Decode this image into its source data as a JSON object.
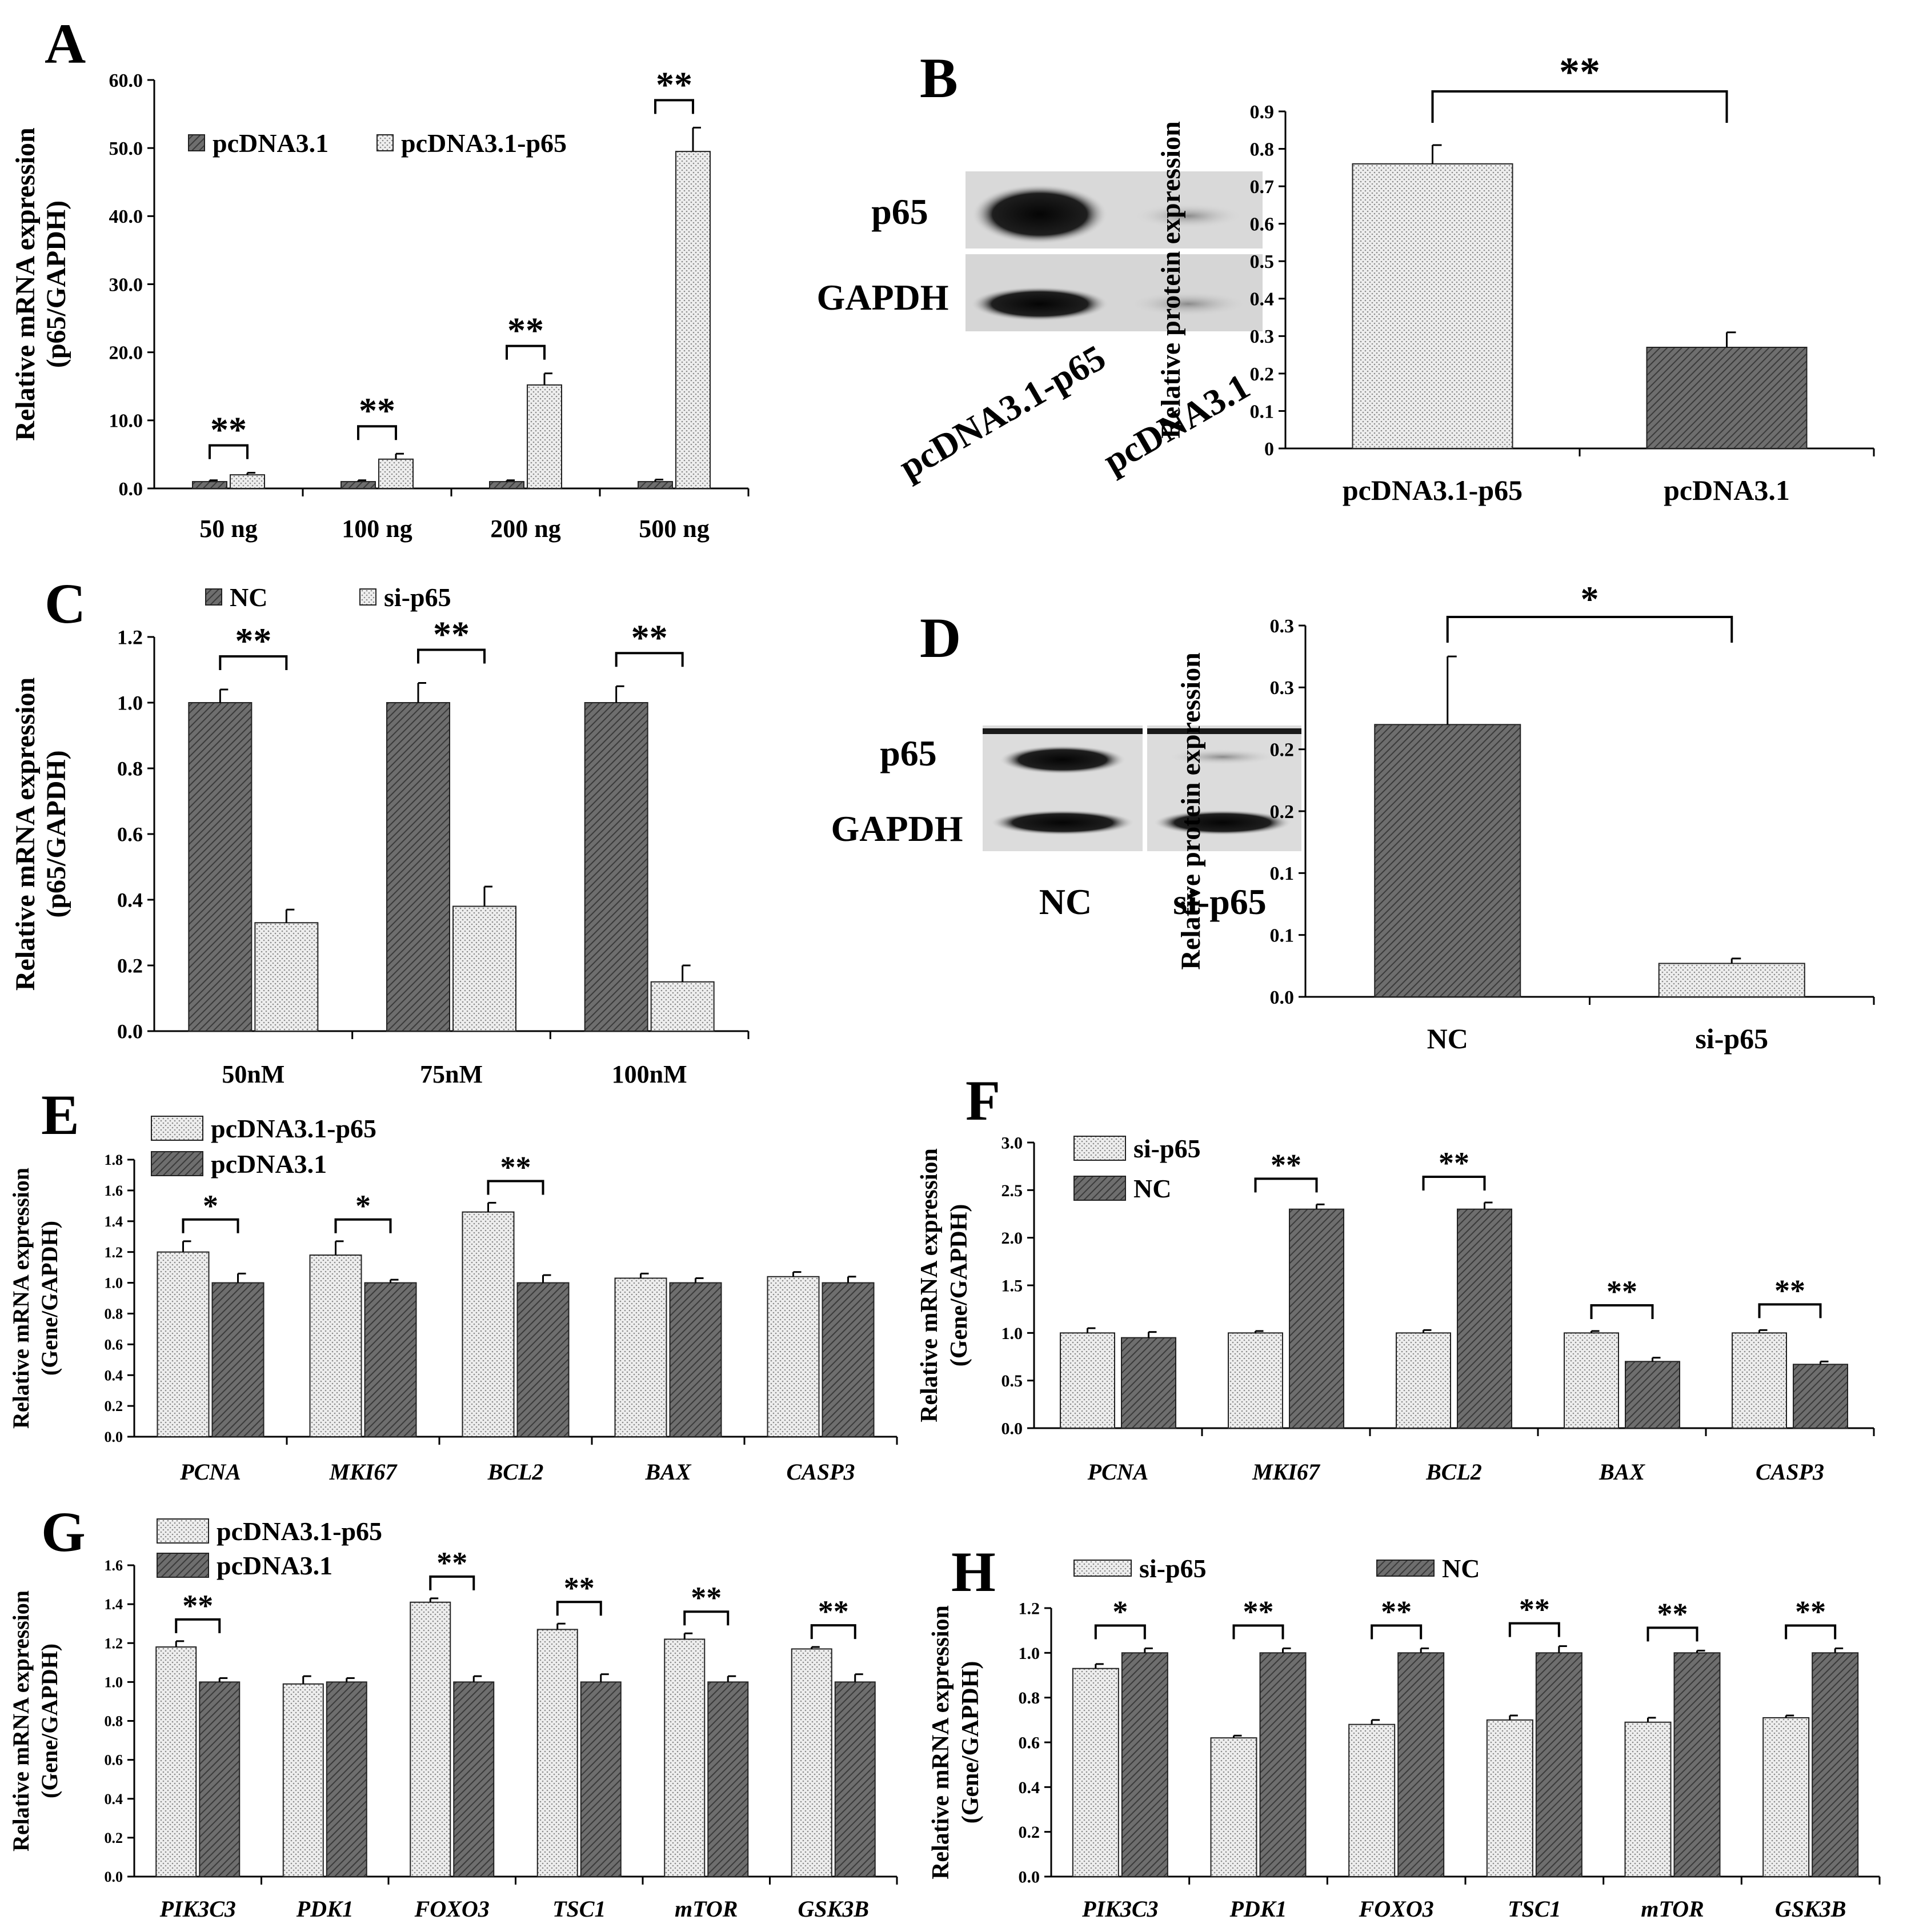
{
  "panels": {
    "A": {
      "letter": "A",
      "chart_data": {
        "type": "bar",
        "title": "",
        "xlabel": "",
        "ylabel": [
          "Relative mRNA expression",
          "(p65/GAPDH)"
        ],
        "categories": [
          "50 ng",
          "100 ng",
          "200 ng",
          "500 ng"
        ],
        "series": [
          {
            "name": "pcDNA3.1",
            "pattern": "dark",
            "values": [
              1.0,
              1.0,
              1.0,
              1.0
            ],
            "errors": [
              0.2,
              0.2,
              0.2,
              0.3
            ]
          },
          {
            "name": "pcDNA3.1-p65",
            "pattern": "light",
            "values": [
              2.0,
              4.3,
              15.2,
              49.5
            ],
            "errors": [
              0.3,
              0.8,
              1.7,
              3.5
            ]
          }
        ],
        "ylim": [
          0,
          60
        ],
        "yticks": [
          0,
          10,
          20,
          30,
          40,
          50,
          60
        ],
        "ytick_labels": [
          "0.0",
          "10.0",
          "20.0",
          "30.0",
          "40.0",
          "50.0",
          "60.0"
        ],
        "significance": [
          {
            "category": 0,
            "label": "**"
          },
          {
            "category": 1,
            "label": "**"
          },
          {
            "category": 2,
            "label": "**"
          },
          {
            "category": 3,
            "label": "**"
          }
        ],
        "legend": "top-left",
        "legend_layout": "row",
        "grid": false
      }
    },
    "B": {
      "letter": "B",
      "blot": {
        "rows": [
          "p65",
          "GAPDH"
        ],
        "lanes": [
          "pcDNA3.1-p65",
          "pcDNA3.1"
        ]
      },
      "chart_data": {
        "type": "bar",
        "title": "",
        "xlabel": "",
        "ylabel": [
          "Relative protein expression"
        ],
        "categories": [
          "pcDNA3.1-p65",
          "pcDNA3.1"
        ],
        "series": [
          {
            "name": "",
            "patterns": [
              "light",
              "dark"
            ],
            "values": [
              0.76,
              0.27
            ],
            "errors": [
              0.05,
              0.04
            ]
          }
        ],
        "ylim": [
          0,
          0.9
        ],
        "yticks": [
          0,
          0.1,
          0.2,
          0.3,
          0.4,
          0.5,
          0.6,
          0.7,
          0.8,
          0.9
        ],
        "ytick_labels": [
          "0",
          "0.1",
          "0.2",
          "0.3",
          "0.4",
          "0.5",
          "0.6",
          "0.7",
          "0.8",
          "0.9"
        ],
        "significance": [
          {
            "from": 0,
            "to": 1,
            "label": "**"
          }
        ],
        "grid": false
      }
    },
    "C": {
      "letter": "C",
      "chart_data": {
        "type": "bar",
        "title": "",
        "xlabel": "",
        "ylabel": [
          "Relative mRNA expression",
          "(p65/GAPDH)"
        ],
        "categories": [
          "50nM",
          "75nM",
          "100nM"
        ],
        "series": [
          {
            "name": "NC",
            "pattern": "dark",
            "values": [
              1.0,
              1.0,
              1.0
            ],
            "errors": [
              0.04,
              0.06,
              0.05
            ]
          },
          {
            "name": "si-p65",
            "pattern": "light",
            "values": [
              0.33,
              0.38,
              0.15
            ],
            "errors": [
              0.04,
              0.06,
              0.05
            ]
          }
        ],
        "ylim": [
          0,
          1.2
        ],
        "yticks": [
          0,
          0.2,
          0.4,
          0.6,
          0.8,
          1.0,
          1.2
        ],
        "ytick_labels": [
          "0.0",
          "0.2",
          "0.4",
          "0.6",
          "0.8",
          "1.0",
          "1.2"
        ],
        "significance": [
          {
            "category": 0,
            "label": "**"
          },
          {
            "category": 1,
            "label": "**"
          },
          {
            "category": 2,
            "label": "**"
          }
        ],
        "legend": "top",
        "legend_layout": "row",
        "grid": false
      }
    },
    "D": {
      "letter": "D",
      "blot": {
        "rows": [
          "p65",
          "GAPDH"
        ],
        "lanes": [
          "NC",
          "si-p65"
        ]
      },
      "chart_data": {
        "type": "bar",
        "title": "",
        "xlabel": "",
        "ylabel": [
          "Relative protein expression"
        ],
        "categories": [
          "NC",
          "si-p65"
        ],
        "series": [
          {
            "name": "",
            "patterns": [
              "dark",
              "light"
            ],
            "values": [
              0.22,
              0.027
            ],
            "errors": [
              0.055,
              0.004
            ]
          }
        ],
        "ylim": [
          0,
          0.3
        ],
        "yticks": [
          0,
          0.05,
          0.1,
          0.15,
          0.2,
          0.25,
          0.3
        ],
        "ytick_labels": [
          "0.0",
          "0.1",
          "0.1",
          "0.2",
          "0.2",
          "0.3",
          "0.3"
        ],
        "significance": [
          {
            "from": 0,
            "to": 1,
            "label": "*"
          }
        ],
        "grid": false
      }
    },
    "E": {
      "letter": "E",
      "chart_data": {
        "type": "bar",
        "title": "",
        "xlabel": "",
        "ylabel": [
          "Relative mRNA expression",
          "(Gene/GAPDH)"
        ],
        "categories": [
          "PCNA",
          "MKI67",
          "BCL2",
          "BAX",
          "CASP3"
        ],
        "italic_categories": true,
        "series": [
          {
            "name": "pcDNA3.1-p65",
            "pattern": "light",
            "values": [
              1.2,
              1.18,
              1.46,
              1.03,
              1.04
            ],
            "errors": [
              0.07,
              0.09,
              0.06,
              0.03,
              0.03
            ]
          },
          {
            "name": "pcDNA3.1",
            "pattern": "dark",
            "values": [
              1.0,
              1.0,
              1.0,
              1.0,
              1.0
            ],
            "errors": [
              0.06,
              0.02,
              0.05,
              0.03,
              0.04
            ]
          }
        ],
        "ylim": [
          0,
          1.8
        ],
        "yticks": [
          0,
          0.2,
          0.4,
          0.6,
          0.8,
          1.0,
          1.2,
          1.4,
          1.6,
          1.8
        ],
        "ytick_labels": [
          "0.0",
          "0.2",
          "0.4",
          "0.6",
          "0.8",
          "1.0",
          "1.2",
          "1.4",
          "1.6",
          "1.8"
        ],
        "significance": [
          {
            "category": 0,
            "label": "*"
          },
          {
            "category": 1,
            "label": "*"
          },
          {
            "category": 2,
            "label": "**"
          }
        ],
        "legend": "top-left",
        "legend_layout": "column",
        "grid": false
      }
    },
    "F": {
      "letter": "F",
      "chart_data": {
        "type": "bar",
        "title": "",
        "xlabel": "",
        "ylabel": [
          "Relative mRNA expression",
          "(Gene/GAPDH)"
        ],
        "categories": [
          "PCNA",
          "MKI67",
          "BCL2",
          "BAX",
          "CASP3"
        ],
        "italic_categories": true,
        "series": [
          {
            "name": "si-p65",
            "pattern": "light",
            "values": [
              1.0,
              1.0,
              1.0,
              1.0,
              1.0
            ],
            "errors": [
              0.05,
              0.02,
              0.03,
              0.02,
              0.03
            ]
          },
          {
            "name": "NC",
            "pattern": "dark",
            "values": [
              0.95,
              2.3,
              2.3,
              0.7,
              0.67
            ],
            "errors": [
              0.06,
              0.05,
              0.07,
              0.04,
              0.03
            ]
          }
        ],
        "ylim": [
          0,
          3.0
        ],
        "yticks": [
          0,
          0.5,
          1.0,
          1.5,
          2.0,
          2.5,
          3.0
        ],
        "ytick_labels": [
          "0.0",
          "0.5",
          "1.0",
          "1.5",
          "2.0",
          "2.5",
          "3.0"
        ],
        "significance": [
          {
            "category": 1,
            "label": "**"
          },
          {
            "category": 2,
            "label": "**"
          },
          {
            "category": 3,
            "label": "**"
          },
          {
            "category": 4,
            "label": "**"
          }
        ],
        "legend": "top-left",
        "legend_layout": "column",
        "grid": false
      }
    },
    "G": {
      "letter": "G",
      "chart_data": {
        "type": "bar",
        "title": "",
        "xlabel": "",
        "ylabel": [
          "Relative mRNA expression",
          "(Gene/GAPDH)"
        ],
        "categories": [
          "PIK3C3",
          "PDK1",
          "FOXO3",
          "TSC1",
          "mTOR",
          "GSK3B"
        ],
        "italic_categories": true,
        "series": [
          {
            "name": "pcDNA3.1-p65",
            "pattern": "light",
            "values": [
              1.18,
              0.99,
              1.41,
              1.27,
              1.22,
              1.17
            ],
            "errors": [
              0.03,
              0.04,
              0.02,
              0.03,
              0.03,
              0.01
            ]
          },
          {
            "name": "pcDNA3.1",
            "pattern": "dark",
            "values": [
              1.0,
              1.0,
              1.0,
              1.0,
              1.0,
              1.0
            ],
            "errors": [
              0.02,
              0.02,
              0.03,
              0.04,
              0.03,
              0.04
            ]
          }
        ],
        "ylim": [
          0,
          1.6
        ],
        "yticks": [
          0,
          0.2,
          0.4,
          0.6,
          0.8,
          1.0,
          1.2,
          1.4,
          1.6
        ],
        "ytick_labels": [
          "0.0",
          "0.2",
          "0.4",
          "0.6",
          "0.8",
          "1.0",
          "1.2",
          "1.4",
          "1.6"
        ],
        "significance": [
          {
            "category": 0,
            "label": "**"
          },
          {
            "category": 2,
            "label": "**"
          },
          {
            "category": 3,
            "label": "**"
          },
          {
            "category": 4,
            "label": "**"
          },
          {
            "category": 5,
            "label": "**"
          }
        ],
        "legend": "top-left",
        "legend_layout": "column",
        "grid": false
      }
    },
    "H": {
      "letter": "H",
      "chart_data": {
        "type": "bar",
        "title": "",
        "xlabel": "",
        "ylabel": [
          "Relative mRNA expression",
          "(Gene/GAPDH)"
        ],
        "categories": [
          "PIK3C3",
          "PDK1",
          "FOXO3",
          "TSC1",
          "mTOR",
          "GSK3B"
        ],
        "italic_categories": true,
        "series": [
          {
            "name": "si-p65",
            "pattern": "light",
            "values": [
              0.93,
              0.62,
              0.68,
              0.7,
              0.69,
              0.71
            ],
            "errors": [
              0.02,
              0.01,
              0.02,
              0.02,
              0.02,
              0.01
            ]
          },
          {
            "name": "NC",
            "pattern": "dark",
            "values": [
              1.0,
              1.0,
              1.0,
              1.0,
              1.0,
              1.0
            ],
            "errors": [
              0.02,
              0.02,
              0.02,
              0.03,
              0.01,
              0.02
            ]
          }
        ],
        "ylim": [
          0,
          1.2
        ],
        "yticks": [
          0,
          0.2,
          0.4,
          0.6,
          0.8,
          1.0,
          1.2
        ],
        "ytick_labels": [
          "0.0",
          "0.2",
          "0.4",
          "0.6",
          "0.8",
          "1.0",
          "1.2"
        ],
        "significance": [
          {
            "category": 0,
            "label": "*"
          },
          {
            "category": 1,
            "label": "**"
          },
          {
            "category": 2,
            "label": "**"
          },
          {
            "category": 3,
            "label": "**"
          },
          {
            "category": 4,
            "label": "**"
          },
          {
            "category": 5,
            "label": "**"
          }
        ],
        "legend": "top",
        "legend_layout": "row",
        "grid": false
      }
    }
  },
  "colors": {
    "dark_fill": "#5a5a5a",
    "light_fill": "#e6e6e6",
    "axis": "#000000",
    "text": "#000000"
  }
}
